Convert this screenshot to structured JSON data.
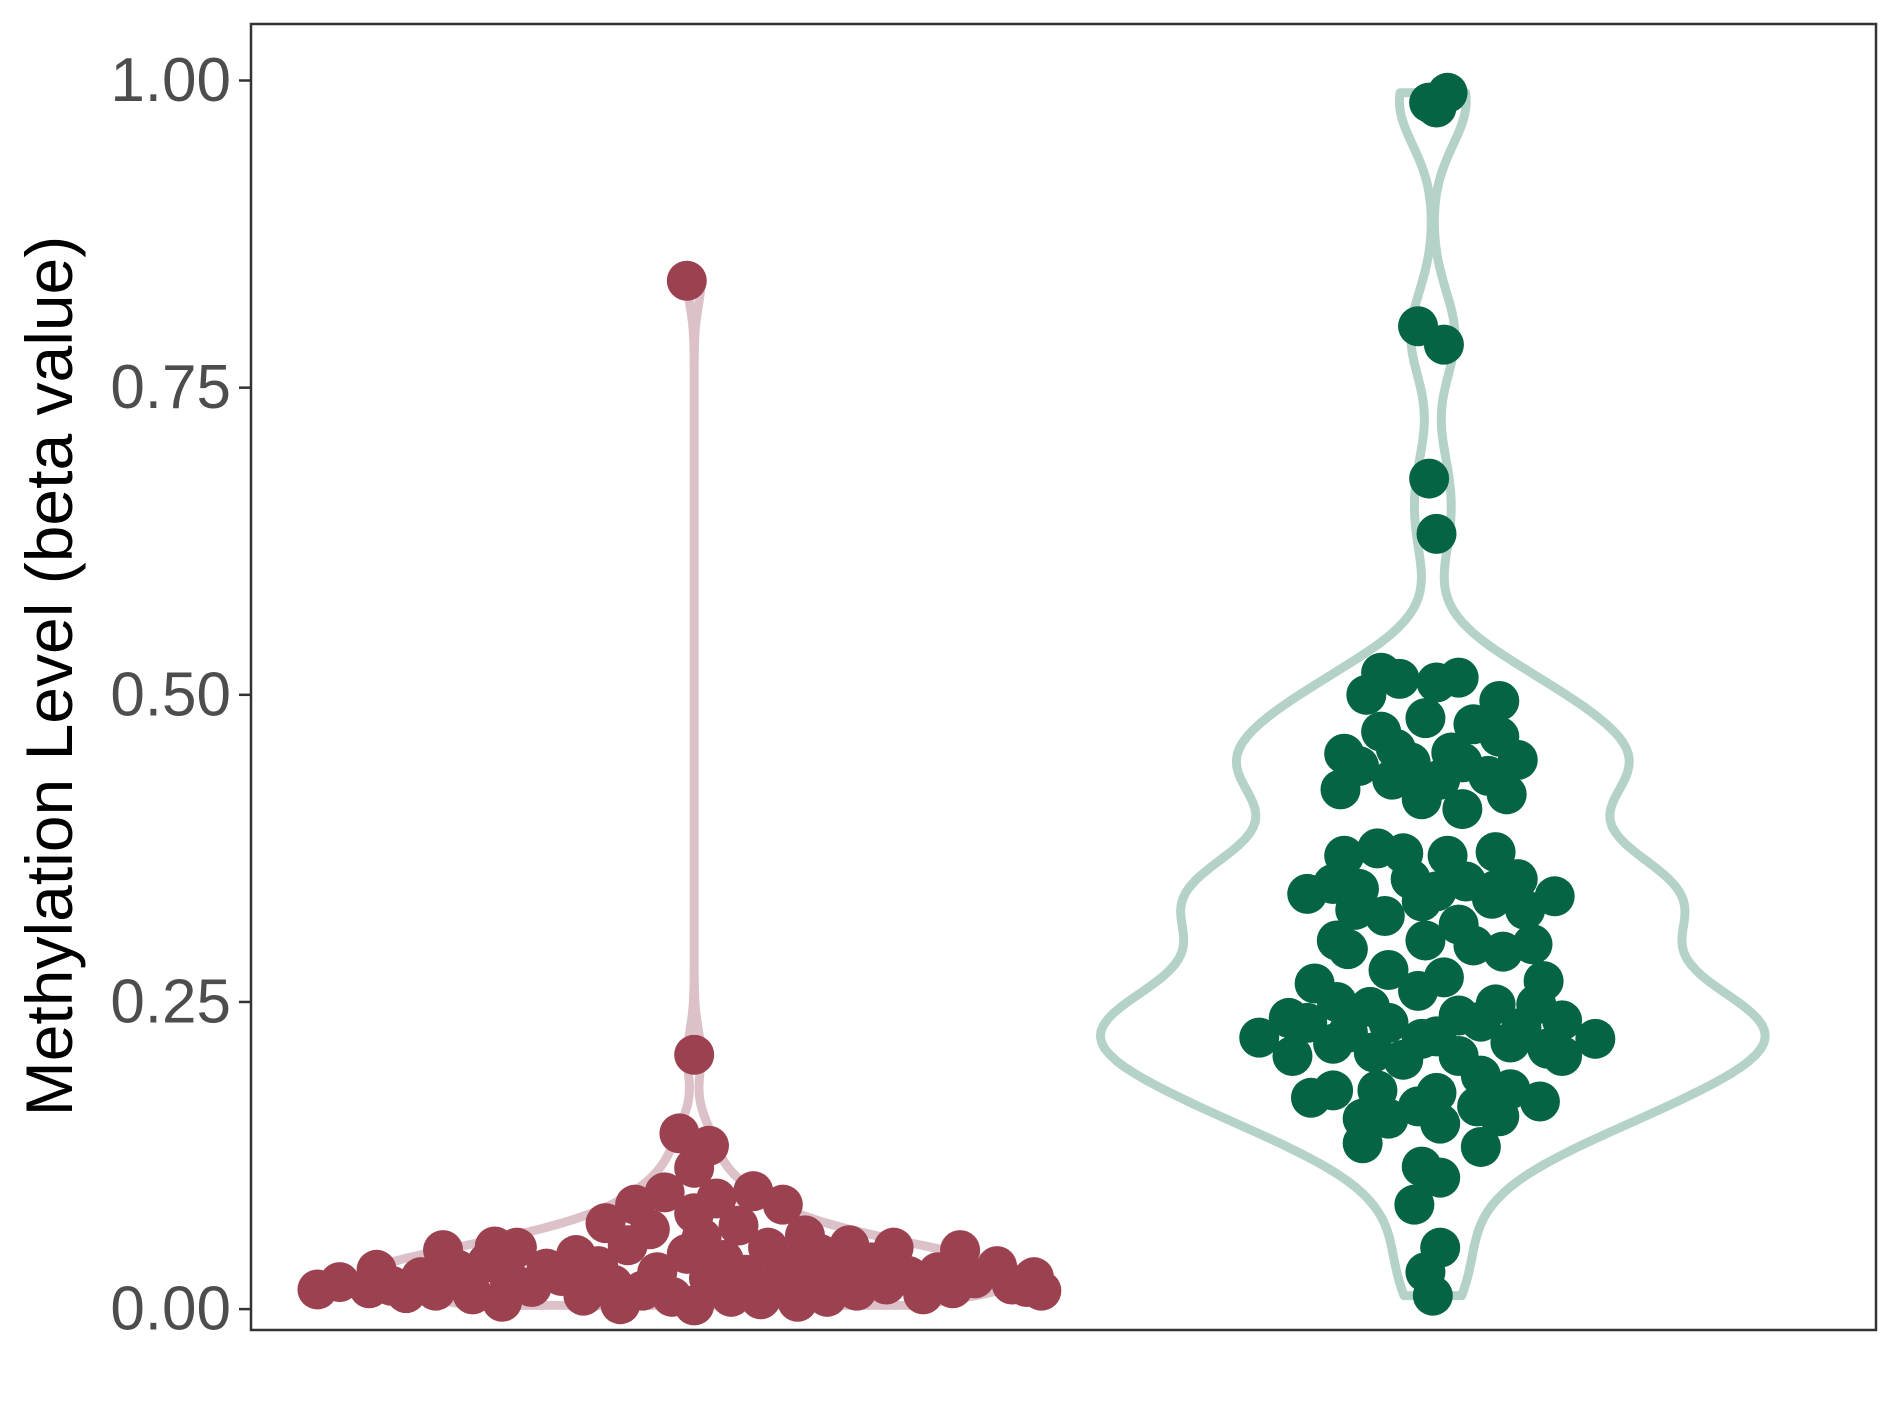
{
  "chart_data": {
    "type": "violin",
    "title": "",
    "xlabel": "",
    "ylabel": "Methylation Level (beta value)",
    "ylim": [
      -0.017,
      1.046
    ],
    "y_ticks": [
      0.0,
      0.25,
      0.5,
      0.75,
      1.0
    ],
    "y_tick_labels": [
      "0.00",
      "0.25",
      "0.50",
      "0.75",
      "1.00"
    ],
    "grid": false,
    "legend": "none",
    "series": [
      {
        "point_color": "#9b4150",
        "violin_color": "#dcc2c8",
        "points": [
          [
            -0.51,
            0.016
          ],
          [
            -0.48,
            0.022
          ],
          [
            -0.44,
            0.017
          ],
          [
            -0.43,
            0.032
          ],
          [
            -0.41,
            0.019
          ],
          [
            -0.39,
            0.013
          ],
          [
            -0.37,
            0.026
          ],
          [
            -0.35,
            0.015
          ],
          [
            -0.34,
            0.048
          ],
          [
            -0.32,
            0.032
          ],
          [
            -0.3,
            0.012
          ],
          [
            -0.28,
            0.038
          ],
          [
            -0.27,
            0.051
          ],
          [
            -0.26,
            0.006
          ],
          [
            -0.25,
            0.024
          ],
          [
            -0.24,
            0.05
          ],
          [
            -0.22,
            0.018
          ],
          [
            -0.2,
            0.033
          ],
          [
            -0.18,
            0.027
          ],
          [
            -0.16,
            0.044
          ],
          [
            -0.15,
            0.011
          ],
          [
            -0.13,
            0.035
          ],
          [
            -0.12,
            0.07
          ],
          [
            -0.11,
            0.02
          ],
          [
            -0.1,
            0.004
          ],
          [
            -0.09,
            0.052
          ],
          [
            -0.08,
            0.085
          ],
          [
            -0.07,
            0.015
          ],
          [
            -0.06,
            0.065
          ],
          [
            -0.05,
            0.03
          ],
          [
            -0.04,
            0.095
          ],
          [
            -0.03,
            0.01
          ],
          [
            -0.02,
            0.143
          ],
          [
            -0.01,
            0.837
          ],
          [
            -0.01,
            0.045
          ],
          [
            0.0,
            0.078
          ],
          [
            0.0,
            0.115
          ],
          [
            0.0,
            0.207
          ],
          [
            0.0,
            0.003
          ],
          [
            0.01,
            0.058
          ],
          [
            0.02,
            0.025
          ],
          [
            0.02,
            0.133
          ],
          [
            0.03,
            0.09
          ],
          [
            0.04,
            0.04
          ],
          [
            0.05,
            0.01
          ],
          [
            0.06,
            0.068
          ],
          [
            0.07,
            0.028
          ],
          [
            0.08,
            0.096
          ],
          [
            0.09,
            0.008
          ],
          [
            0.1,
            0.05
          ],
          [
            0.11,
            0.02
          ],
          [
            0.12,
            0.085
          ],
          [
            0.13,
            0.035
          ],
          [
            0.14,
            0.006
          ],
          [
            0.15,
            0.06
          ],
          [
            0.16,
            0.022
          ],
          [
            0.17,
            0.045
          ],
          [
            0.18,
            0.01
          ],
          [
            0.2,
            0.03
          ],
          [
            0.21,
            0.052
          ],
          [
            0.22,
            0.015
          ],
          [
            0.24,
            0.038
          ],
          [
            0.26,
            0.02
          ],
          [
            0.27,
            0.05
          ],
          [
            0.29,
            0.027
          ],
          [
            0.31,
            0.012
          ],
          [
            0.33,
            0.03
          ],
          [
            0.35,
            0.017
          ],
          [
            0.36,
            0.048
          ],
          [
            0.38,
            0.025
          ],
          [
            0.41,
            0.035
          ],
          [
            0.43,
            0.02
          ],
          [
            0.45,
            0.018
          ],
          [
            0.46,
            0.026
          ],
          [
            0.47,
            0.015
          ]
        ]
      },
      {
        "point_color": "#046443",
        "violin_color": "#b4d2c8",
        "points": [
          [
            -0.005,
            0.982
          ],
          [
            0.005,
            0.978
          ],
          [
            0.02,
            0.99
          ],
          [
            -0.02,
            0.8
          ],
          [
            0.015,
            0.785
          ],
          [
            -0.005,
            0.676
          ],
          [
            0.005,
            0.631
          ],
          [
            -0.07,
            0.518
          ],
          [
            -0.045,
            0.513
          ],
          [
            0.005,
            0.51
          ],
          [
            0.035,
            0.514
          ],
          [
            -0.09,
            0.5
          ],
          [
            0.09,
            0.495
          ],
          [
            -0.01,
            0.481
          ],
          [
            -0.07,
            0.47
          ],
          [
            0.055,
            0.476
          ],
          [
            -0.12,
            0.452
          ],
          [
            -0.05,
            0.456
          ],
          [
            0.025,
            0.453
          ],
          [
            0.09,
            0.466
          ],
          [
            -0.1,
            0.442
          ],
          [
            -0.03,
            0.445
          ],
          [
            0.04,
            0.445
          ],
          [
            0.115,
            0.447
          ],
          [
            -0.125,
            0.423
          ],
          [
            -0.055,
            0.431
          ],
          [
            0.01,
            0.431
          ],
          [
            0.075,
            0.434
          ],
          [
            -0.015,
            0.415
          ],
          [
            0.04,
            0.407
          ],
          [
            0.1,
            0.419
          ],
          [
            -0.12,
            0.369
          ],
          [
            -0.075,
            0.375
          ],
          [
            -0.04,
            0.371
          ],
          [
            0.02,
            0.369
          ],
          [
            0.085,
            0.372
          ],
          [
            -0.135,
            0.346
          ],
          [
            -0.1,
            0.342
          ],
          [
            -0.03,
            0.35
          ],
          [
            0.045,
            0.348
          ],
          [
            0.115,
            0.35
          ],
          [
            -0.17,
            0.338
          ],
          [
            -0.105,
            0.325
          ],
          [
            -0.015,
            0.332
          ],
          [
            0.005,
            0.34
          ],
          [
            0.08,
            0.334
          ],
          [
            0.085,
            0.341
          ],
          [
            0.125,
            0.325
          ],
          [
            0.165,
            0.336
          ],
          [
            -0.065,
            0.32
          ],
          [
            0.035,
            0.313
          ],
          [
            -0.13,
            0.3
          ],
          [
            -0.01,
            0.3
          ],
          [
            0.055,
            0.296
          ],
          [
            0.095,
            0.291
          ],
          [
            0.135,
            0.297
          ],
          [
            -0.115,
            0.293
          ],
          [
            -0.06,
            0.276
          ],
          [
            0.015,
            0.27
          ],
          [
            -0.16,
            0.265
          ],
          [
            -0.02,
            0.259
          ],
          [
            0.15,
            0.267
          ],
          [
            -0.13,
            0.25
          ],
          [
            -0.085,
            0.246
          ],
          [
            0.035,
            0.239
          ],
          [
            0.085,
            0.248
          ],
          [
            0.14,
            0.248
          ],
          [
            -0.195,
            0.237
          ],
          [
            -0.17,
            0.233
          ],
          [
            -0.06,
            0.233
          ],
          [
            0.065,
            0.234
          ],
          [
            0.12,
            0.229
          ],
          [
            0.175,
            0.235
          ],
          [
            -0.235,
            0.221
          ],
          [
            -0.135,
            0.216
          ],
          [
            -0.115,
            0.225
          ],
          [
            -0.015,
            0.22
          ],
          [
            0.005,
            0.222
          ],
          [
            0.105,
            0.217
          ],
          [
            0.22,
            0.22
          ],
          [
            -0.19,
            0.206
          ],
          [
            -0.08,
            0.209
          ],
          [
            -0.04,
            0.203
          ],
          [
            0.035,
            0.206
          ],
          [
            0.155,
            0.212
          ],
          [
            0.175,
            0.206
          ],
          [
            -0.165,
            0.172
          ],
          [
            -0.135,
            0.178
          ],
          [
            -0.075,
            0.178
          ],
          [
            0.005,
            0.176
          ],
          [
            0.065,
            0.19
          ],
          [
            0.105,
            0.179
          ],
          [
            -0.02,
            0.165
          ],
          [
            0.06,
            0.165
          ],
          [
            0.09,
            0.157
          ],
          [
            0.145,
            0.169
          ],
          [
            -0.095,
            0.155
          ],
          [
            -0.06,
            0.155
          ],
          [
            0.01,
            0.151
          ],
          [
            0.065,
            0.132
          ],
          [
            -0.095,
            0.135
          ],
          [
            -0.015,
            0.116
          ],
          [
            0.01,
            0.107
          ],
          [
            -0.025,
            0.085
          ],
          [
            0.01,
            0.05
          ],
          [
            -0.01,
            0.03
          ],
          [
            0.0,
            0.011
          ]
        ]
      }
    ]
  }
}
